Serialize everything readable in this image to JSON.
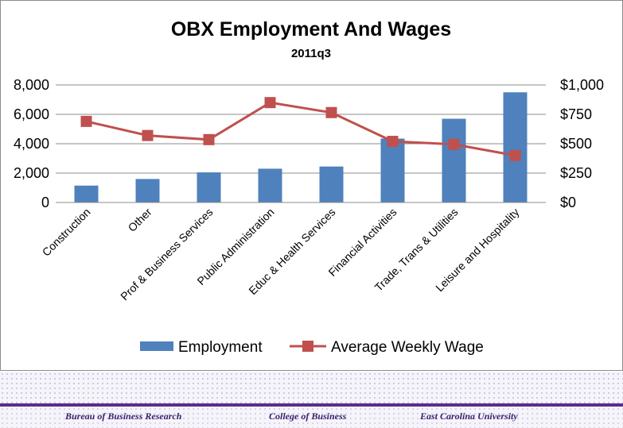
{
  "chart_data": {
    "type": "bar+line",
    "title": "OBX Employment And Wages",
    "subtitle": "2011q3",
    "categories": [
      "Construction",
      "Other",
      "Prof & Business Services",
      "Public Administration",
      "Educ & Health Services",
      "Financial Activities",
      "Trade, Trans & Utilities",
      "Leisure and Hospitality"
    ],
    "series": [
      {
        "name": "Employment",
        "type": "bar",
        "axis": "left",
        "color": "#4f81bd",
        "values": [
          1150,
          1600,
          2050,
          2300,
          2450,
          4350,
          5700,
          7500
        ]
      },
      {
        "name": "Average Weekly Wage",
        "type": "line",
        "axis": "right",
        "color": "#c0504d",
        "values": [
          690,
          570,
          535,
          850,
          765,
          520,
          495,
          400
        ]
      }
    ],
    "y_left": {
      "min": 0,
      "max": 8000,
      "ticks": [
        "0",
        "2,000",
        "4,000",
        "6,000",
        "8,000"
      ],
      "tick_values": [
        0,
        2000,
        4000,
        6000,
        8000
      ]
    },
    "y_right": {
      "min": 0,
      "max": 1000,
      "ticks": [
        "$0",
        "$250",
        "$500",
        "$750",
        "$1,000"
      ],
      "tick_values": [
        0,
        250,
        500,
        750,
        1000
      ]
    },
    "grid": true,
    "legend_position": "bottom"
  },
  "footer": {
    "left": "Bureau of Business Research",
    "center": "College of Business",
    "right": "East Carolina University"
  }
}
